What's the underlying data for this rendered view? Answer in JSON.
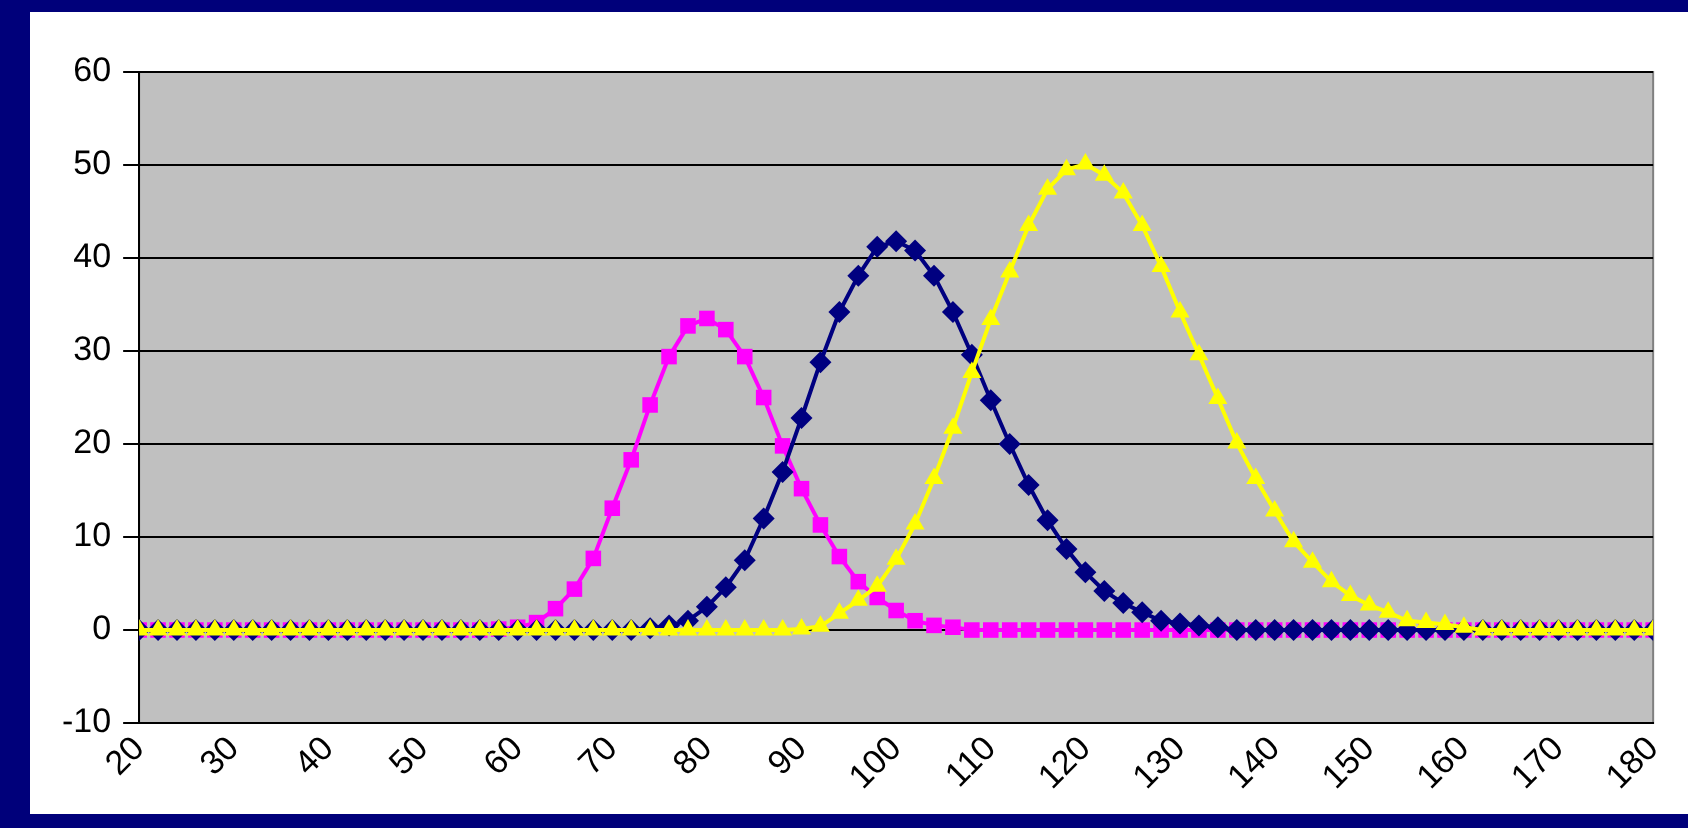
{
  "chart_data": {
    "type": "line",
    "x": [
      20,
      22,
      24,
      26,
      28,
      30,
      32,
      34,
      36,
      38,
      40,
      42,
      44,
      46,
      48,
      50,
      52,
      54,
      56,
      58,
      60,
      62,
      64,
      66,
      68,
      70,
      72,
      74,
      76,
      78,
      80,
      82,
      84,
      86,
      88,
      90,
      92,
      94,
      96,
      98,
      100,
      102,
      104,
      106,
      108,
      110,
      112,
      114,
      116,
      118,
      120,
      122,
      124,
      126,
      128,
      130,
      132,
      134,
      136,
      138,
      140,
      142,
      144,
      146,
      148,
      150,
      152,
      154,
      156,
      158,
      160,
      162,
      164,
      166,
      168,
      170,
      172,
      174,
      176,
      178,
      180
    ],
    "series": [
      {
        "color": "#ff00ff",
        "marker": "square",
        "values": [
          0,
          0,
          0,
          0,
          0,
          0,
          0,
          0,
          0,
          0,
          0,
          0,
          0,
          0,
          0,
          0,
          0,
          0,
          0,
          0.1,
          0.3,
          0.8,
          2.3,
          4.4,
          7.7,
          13.1,
          18.3,
          24.2,
          29.4,
          32.7,
          33.5,
          32.3,
          29.4,
          25,
          19.8,
          15.2,
          11.3,
          7.9,
          5.2,
          3.5,
          2.1,
          1.0,
          0.5,
          0.3,
          0,
          0,
          0,
          0,
          0,
          0,
          0,
          0,
          0,
          0,
          0,
          0,
          0,
          0,
          0,
          0,
          0,
          0,
          0,
          0,
          0,
          0,
          0,
          0,
          0,
          0,
          0,
          0,
          0,
          0,
          0,
          0,
          0,
          0,
          0,
          0,
          0
        ]
      },
      {
        "color": "#000080",
        "marker": "diamond",
        "values": [
          0,
          0,
          0,
          0,
          0,
          0,
          0,
          0,
          0,
          0,
          0,
          0,
          0,
          0,
          0,
          0,
          0,
          0,
          0,
          0,
          0,
          0,
          0,
          0,
          0,
          0,
          0,
          0.2,
          0.5,
          1.0,
          2.5,
          4.6,
          7.5,
          12,
          17,
          22.8,
          28.8,
          34.2,
          38.1,
          41.2,
          41.8,
          40.8,
          38.1,
          34.2,
          29.6,
          24.7,
          20,
          15.6,
          11.8,
          8.7,
          6.2,
          4.2,
          2.9,
          1.9,
          1.0,
          0.7,
          0.5,
          0.3,
          0,
          0,
          0,
          0,
          0,
          0,
          0,
          0,
          0,
          0,
          0,
          0,
          0,
          0,
          0,
          0,
          0,
          0,
          0,
          0,
          0,
          0,
          0
        ]
      },
      {
        "color": "#ffff00",
        "marker": "triangle",
        "values": [
          0,
          0,
          0,
          0,
          0,
          0,
          0,
          0,
          0,
          0,
          0,
          0,
          0,
          0,
          0,
          0,
          0,
          0,
          0,
          0,
          0,
          0,
          0,
          0,
          0,
          0,
          0,
          0,
          0,
          0,
          0,
          0,
          0,
          0,
          0,
          0.1,
          0.4,
          1.8,
          3.2,
          4.7,
          7.6,
          11.4,
          16.3,
          21.7,
          27.7,
          33.4,
          38.5,
          43.5,
          47.4,
          49.5,
          50.1,
          48.9,
          47,
          43.5,
          39.1,
          34.2,
          29.6,
          24.9,
          20.1,
          16.3,
          12.8,
          9.5,
          7.3,
          5.2,
          3.7,
          2.7,
          1.9,
          1.0,
          0.8,
          0.6,
          0.3,
          0,
          0,
          0,
          0,
          0,
          0,
          0,
          0,
          0,
          0
        ]
      }
    ],
    "xlim": [
      20,
      180
    ],
    "xticks": [
      20,
      30,
      40,
      50,
      60,
      70,
      80,
      90,
      100,
      110,
      120,
      130,
      140,
      150,
      160,
      170,
      180
    ],
    "ylim": [
      -10,
      60
    ],
    "yticks": [
      -10,
      0,
      10,
      20,
      30,
      40,
      50,
      60
    ],
    "grid": "y",
    "legend": false
  }
}
